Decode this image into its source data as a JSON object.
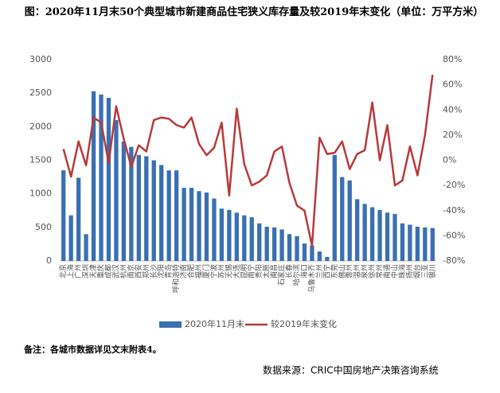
{
  "chart_data": {
    "type": "bar-line",
    "title": "图：2020年11月末50个典型城市新建商品住宅狭义库存量及较2019年末变化（单位：万平方米）",
    "categories": [
      "北京",
      "上海",
      "广州",
      "深圳",
      "天津",
      "重庆",
      "成都",
      "武汉",
      "杭州",
      "南京",
      "西安",
      "郑州",
      "长沙",
      "沈阳",
      "青岛",
      "呼和浩特",
      "济南",
      "合肥",
      "福州",
      "厦门",
      "宁波",
      "苏州",
      "无锡",
      "大连",
      "昆明",
      "南宁",
      "贵阳",
      "太原",
      "南昌",
      "石家庄",
      "长春",
      "哈尔滨",
      "海口",
      "乌鲁木齐",
      "兰州",
      "西宁",
      "东莞",
      "佛山",
      "惠州",
      "温州",
      "泉州",
      "徐州",
      "常州",
      "南通",
      "中山",
      "珠海",
      "扬州",
      "烟台",
      "三亚",
      "银川"
    ],
    "series": [
      {
        "name": "2020年11月末",
        "color": "#3a70b2",
        "type": "bar",
        "values": [
          1350,
          680,
          1240,
          400,
          2530,
          2480,
          2430,
          2100,
          1780,
          1700,
          1580,
          1560,
          1500,
          1430,
          1350,
          1350,
          1090,
          1090,
          1040,
          1020,
          930,
          780,
          760,
          720,
          680,
          650,
          560,
          510,
          500,
          470,
          400,
          370,
          260,
          230,
          140,
          60,
          1580,
          1250,
          1200,
          920,
          850,
          800,
          760,
          720,
          700,
          560,
          540,
          510,
          500,
          490
        ]
      },
      {
        "name": "较2019年末变化",
        "color": "#b83a3a",
        "type": "line",
        "axis": "y2",
        "values": [
          9,
          -13,
          15,
          -4,
          34,
          30,
          -2,
          43,
          17,
          -5,
          12,
          7,
          32,
          34,
          33,
          28,
          26,
          34,
          13,
          4,
          10,
          30,
          -28,
          41,
          -3,
          -20,
          -17,
          -12,
          7,
          11,
          -18,
          -36,
          -40,
          -68,
          18,
          5,
          6,
          15,
          -7,
          5,
          8,
          46,
          0,
          28,
          -20,
          -16,
          11,
          -12,
          20,
          68
        ]
      }
    ],
    "ylim": [
      0,
      3000
    ],
    "yticks": [
      0,
      500,
      1000,
      1500,
      2000,
      2500,
      3000
    ],
    "y2lim": [
      -80,
      80
    ],
    "y2ticks": [
      {
        "value": -80,
        "label": "-80%"
      },
      {
        "value": -60,
        "label": "-60%"
      },
      {
        "value": -40,
        "label": "-40%"
      },
      {
        "value": -20,
        "label": "-20%"
      },
      {
        "value": 0,
        "label": "0%"
      },
      {
        "value": 20,
        "label": "20%"
      },
      {
        "value": 40,
        "label": "40%"
      },
      {
        "value": 60,
        "label": "60%"
      },
      {
        "value": 80,
        "label": "80%"
      }
    ],
    "note": "备注：各城市数据详见文末附表4。",
    "source": "数据来源：CRIC中国房地产决策咨询系统"
  }
}
